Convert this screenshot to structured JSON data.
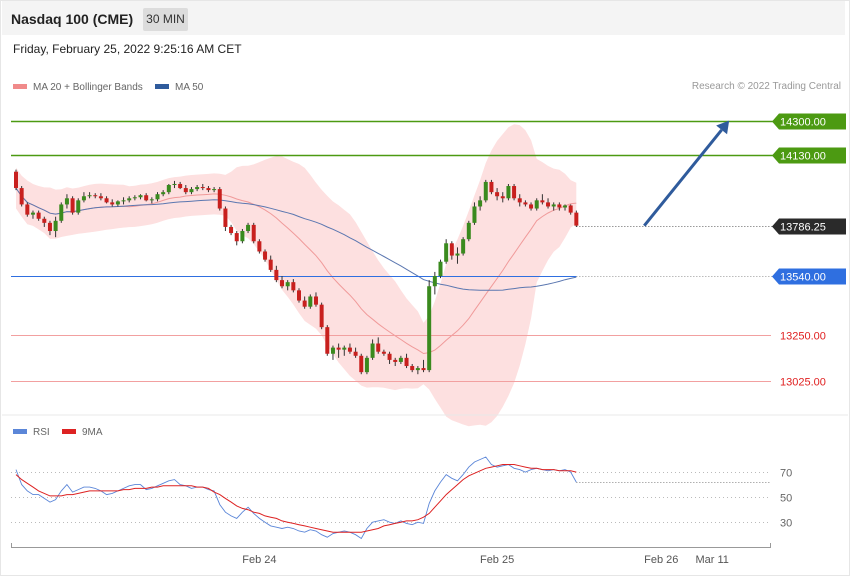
{
  "header": {
    "title": "Nasdaq 100 (CME)",
    "timeframe": "30 MIN",
    "datetime": "Friday, February 25, 2022 9:25:16 AM CET",
    "credit": "Research © 2022 Trading Central"
  },
  "legend": {
    "price": [
      {
        "label": "MA 20 + Bollinger Bands",
        "color": "#f08a8a"
      },
      {
        "label": "MA 50",
        "color": "#2f5b9c"
      }
    ],
    "rsi": [
      {
        "label": "RSI",
        "color": "#5b86d8"
      },
      {
        "label": "9MA",
        "color": "#dd2222"
      }
    ]
  },
  "colors": {
    "up": "#3a8a1e",
    "down": "#c8201e",
    "band": "#fde0e0",
    "ma20": "#f09a9a",
    "ma50": "#5b77b0",
    "arrow": "#2f5b9c"
  },
  "chart_data": [
    {
      "type": "candlestick",
      "ylim": [
        12885,
        14425
      ],
      "levels": [
        {
          "value": 14300,
          "label": "14300.00",
          "kind": "resistance",
          "color": "#4c9a12"
        },
        {
          "value": 14130,
          "label": "14130.00",
          "kind": "resistance",
          "color": "#4c9a12"
        },
        {
          "value": 13786.25,
          "label": "13786.25",
          "kind": "last",
          "color": "#2a2a2a"
        },
        {
          "value": 13540,
          "label": "13540.00",
          "kind": "pivot",
          "color": "#2f6fe0"
        },
        {
          "value": 13250,
          "label": "13250.00",
          "kind": "support",
          "color": "#e02020"
        },
        {
          "value": 13025,
          "label": "13025.00",
          "kind": "support",
          "color": "#e02020"
        }
      ],
      "projection": {
        "from_bar": 111,
        "from": 13786,
        "to_bar": 126,
        "to": 14300
      },
      "x_tick_labels": [
        {
          "label": "Feb 24",
          "bar": 43
        },
        {
          "label": "Feb 25",
          "bar": 85
        },
        {
          "label": "Feb 26",
          "bar": 114
        },
        {
          "label": "Mar 11",
          "bar": 123
        }
      ],
      "ohlc": [
        [
          14050,
          14060,
          13960,
          13970
        ],
        [
          13970,
          13980,
          13880,
          13890
        ],
        [
          13890,
          13900,
          13830,
          13840
        ],
        [
          13840,
          13860,
          13820,
          13850
        ],
        [
          13850,
          13860,
          13810,
          13820
        ],
        [
          13820,
          13830,
          13780,
          13800
        ],
        [
          13800,
          13810,
          13740,
          13760
        ],
        [
          13760,
          13830,
          13730,
          13810
        ],
        [
          13810,
          13900,
          13800,
          13890
        ],
        [
          13890,
          13940,
          13870,
          13920
        ],
        [
          13920,
          13930,
          13840,
          13850
        ],
        [
          13850,
          13920,
          13840,
          13910
        ],
        [
          13910,
          13950,
          13900,
          13930
        ],
        [
          13930,
          13950,
          13920,
          13935
        ],
        [
          13935,
          13945,
          13920,
          13930
        ],
        [
          13930,
          13945,
          13910,
          13920
        ],
        [
          13920,
          13930,
          13895,
          13900
        ],
        [
          13900,
          13915,
          13880,
          13890
        ],
        [
          13890,
          13910,
          13880,
          13905
        ],
        [
          13905,
          13925,
          13890,
          13910
        ],
        [
          13910,
          13930,
          13900,
          13920
        ],
        [
          13920,
          13935,
          13910,
          13925
        ],
        [
          13925,
          13940,
          13915,
          13935
        ],
        [
          13935,
          13945,
          13905,
          13910
        ],
        [
          13910,
          13925,
          13895,
          13915
        ],
        [
          13915,
          13950,
          13905,
          13940
        ],
        [
          13940,
          13960,
          13930,
          13950
        ],
        [
          13950,
          13990,
          13940,
          13985
        ],
        [
          13985,
          14005,
          13970,
          13990
        ],
        [
          13990,
          14000,
          13965,
          13970
        ],
        [
          13970,
          13985,
          13940,
          13950
        ],
        [
          13950,
          13975,
          13940,
          13965
        ],
        [
          13965,
          13985,
          13955,
          13975
        ],
        [
          13975,
          13990,
          13960,
          13970
        ],
        [
          13970,
          13980,
          13950,
          13960
        ],
        [
          13960,
          13975,
          13950,
          13965
        ],
        [
          13965,
          13975,
          13860,
          13870
        ],
        [
          13870,
          13880,
          13760,
          13780
        ],
        [
          13780,
          13790,
          13740,
          13750
        ],
        [
          13750,
          13760,
          13690,
          13710
        ],
        [
          13710,
          13770,
          13700,
          13760
        ],
        [
          13760,
          13800,
          13750,
          13790
        ],
        [
          13790,
          13800,
          13700,
          13710
        ],
        [
          13710,
          13720,
          13650,
          13660
        ],
        [
          13660,
          13670,
          13610,
          13620
        ],
        [
          13620,
          13640,
          13560,
          13570
        ],
        [
          13570,
          13590,
          13510,
          13520
        ],
        [
          13520,
          13540,
          13480,
          13490
        ],
        [
          13490,
          13520,
          13470,
          13510
        ],
        [
          13510,
          13525,
          13460,
          13470
        ],
        [
          13470,
          13480,
          13410,
          13420
        ],
        [
          13420,
          13440,
          13380,
          13390
        ],
        [
          13390,
          13450,
          13380,
          13440
        ],
        [
          13440,
          13460,
          13390,
          13400
        ],
        [
          13400,
          13410,
          13280,
          13290
        ],
        [
          13290,
          13300,
          13150,
          13160
        ],
        [
          13160,
          13200,
          13130,
          13190
        ],
        [
          13190,
          13210,
          13140,
          13180
        ],
        [
          13180,
          13200,
          13150,
          13190
        ],
        [
          13190,
          13210,
          13160,
          13170
        ],
        [
          13170,
          13190,
          13140,
          13150
        ],
        [
          13150,
          13160,
          13060,
          13070
        ],
        [
          13070,
          13150,
          13060,
          13140
        ],
        [
          13140,
          13230,
          13130,
          13210
        ],
        [
          13210,
          13240,
          13160,
          13170
        ],
        [
          13170,
          13180,
          13150,
          13160
        ],
        [
          13160,
          13170,
          13110,
          13130
        ],
        [
          13130,
          13140,
          13100,
          13120
        ],
        [
          13120,
          13150,
          13110,
          13140
        ],
        [
          13140,
          13160,
          13090,
          13100
        ],
        [
          13100,
          13110,
          13070,
          13080
        ],
        [
          13080,
          13100,
          13060,
          13090
        ],
        [
          13090,
          13130,
          13070,
          13080
        ],
        [
          13080,
          13520,
          13070,
          13490
        ],
        [
          13490,
          13560,
          13450,
          13540
        ],
        [
          13540,
          13620,
          13530,
          13610
        ],
        [
          13610,
          13720,
          13600,
          13700
        ],
        [
          13700,
          13710,
          13620,
          13640
        ],
        [
          13640,
          13680,
          13600,
          13650
        ],
        [
          13650,
          13730,
          13640,
          13720
        ],
        [
          13720,
          13810,
          13710,
          13800
        ],
        [
          13800,
          13900,
          13790,
          13880
        ],
        [
          13880,
          13930,
          13860,
          13910
        ],
        [
          13910,
          14010,
          13900,
          14000
        ],
        [
          14000,
          14010,
          13940,
          13950
        ],
        [
          13950,
          13970,
          13910,
          13930
        ],
        [
          13930,
          13950,
          13900,
          13920
        ],
        [
          13920,
          13990,
          13910,
          13980
        ],
        [
          13980,
          13990,
          13910,
          13920
        ],
        [
          13920,
          13940,
          13880,
          13900
        ],
        [
          13900,
          13910,
          13880,
          13890
        ],
        [
          13890,
          13900,
          13860,
          13870
        ],
        [
          13870,
          13920,
          13860,
          13910
        ],
        [
          13910,
          13940,
          13890,
          13900
        ],
        [
          13900,
          13920,
          13870,
          13880
        ],
        [
          13880,
          13900,
          13860,
          13890
        ],
        [
          13890,
          13900,
          13860,
          13875
        ],
        [
          13875,
          13890,
          13860,
          13885
        ],
        [
          13885,
          13890,
          13840,
          13850
        ],
        [
          13850,
          13860,
          13780,
          13786.25
        ]
      ]
    },
    {
      "type": "line",
      "title": "RSI",
      "ylim": [
        11,
        90
      ],
      "y_ticks": [
        30,
        50,
        70
      ],
      "series": [
        {
          "name": "RSI",
          "values": [
            72,
            60,
            55,
            52,
            52,
            49,
            46,
            48,
            55,
            60,
            54,
            56,
            58,
            58,
            57,
            55,
            52,
            53,
            55,
            57,
            59,
            60,
            60,
            56,
            57,
            59,
            61,
            63,
            64,
            60,
            59,
            57,
            58,
            58,
            56,
            55,
            44,
            38,
            35,
            33,
            38,
            42,
            37,
            33,
            30,
            27,
            26,
            25,
            26,
            25,
            23,
            22,
            24,
            23,
            20,
            18,
            21,
            22,
            23,
            22,
            20,
            17,
            25,
            30,
            31,
            32,
            30,
            29,
            31,
            29,
            28,
            30,
            29,
            45,
            55,
            62,
            68,
            65,
            63,
            68,
            74,
            78,
            80,
            82,
            76,
            74,
            75,
            76,
            73,
            72,
            70,
            72,
            73,
            72,
            71,
            72,
            71,
            72,
            70,
            62
          ]
        },
        {
          "name": "9MA",
          "values": [
            68,
            64,
            61,
            58,
            55,
            53,
            51,
            51,
            51,
            52,
            52,
            53,
            54,
            55,
            55,
            55,
            55,
            55,
            55,
            56,
            56,
            57,
            57,
            57,
            58,
            58,
            59,
            59,
            59,
            59,
            59,
            59,
            58,
            58,
            57,
            54,
            52,
            49,
            46,
            43,
            41,
            40,
            38,
            37,
            35,
            34,
            33,
            31,
            30,
            29,
            28,
            27,
            26,
            25,
            24,
            23,
            22,
            22,
            22,
            22,
            22,
            22,
            23,
            24,
            25,
            27,
            28,
            29,
            30,
            31,
            31,
            32,
            34,
            37,
            42,
            47,
            52,
            56,
            60,
            64,
            67,
            69,
            71,
            73,
            74,
            75,
            76,
            76,
            76,
            75,
            74,
            73,
            73,
            72,
            72,
            72,
            71,
            71,
            71,
            70
          ]
        }
      ]
    }
  ]
}
